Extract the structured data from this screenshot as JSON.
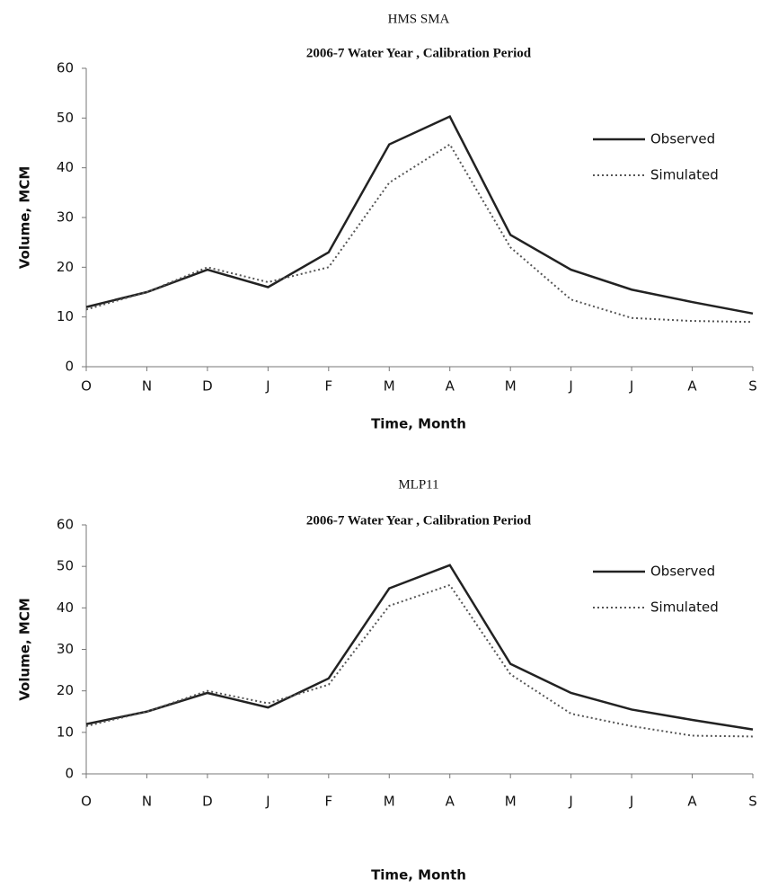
{
  "chart_data": [
    {
      "type": "line",
      "title": "HMS SMA",
      "subtitle": "2006-7 Water Year , Calibration Period",
      "x_label": "Time, Month",
      "y_label": "Volume, MCM",
      "categories": [
        "O",
        "N",
        "D",
        "J",
        "F",
        "M",
        "A",
        "M",
        "J",
        "J",
        "A",
        "S"
      ],
      "ylim": [
        0,
        60
      ],
      "yticks": [
        0,
        10,
        20,
        30,
        40,
        50,
        60
      ],
      "grid": false,
      "legend": "right",
      "series": [
        {
          "name": "Observed",
          "color": "#222222",
          "style": "solid",
          "values": [
            12,
            15,
            19.5,
            16,
            23,
            44.7,
            50.3,
            26.5,
            19.5,
            15.5,
            13,
            10.7
          ]
        },
        {
          "name": "Simulated",
          "color": "#555555",
          "style": "dotted",
          "values": [
            11.5,
            15,
            20,
            17,
            20,
            37,
            44.7,
            24,
            13.5,
            9.8,
            9.2,
            9
          ]
        }
      ]
    },
    {
      "type": "line",
      "title": "MLP11",
      "subtitle": "2006-7 Water Year , Calibration Period",
      "x_label": "Time, Month",
      "y_label": "Volume, MCM",
      "categories": [
        "O",
        "N",
        "D",
        "J",
        "F",
        "M",
        "A",
        "M",
        "J",
        "J",
        "A",
        "S"
      ],
      "ylim": [
        0,
        60
      ],
      "yticks": [
        0,
        10,
        20,
        30,
        40,
        50,
        60
      ],
      "grid": false,
      "legend": "right",
      "series": [
        {
          "name": "Observed",
          "color": "#222222",
          "style": "solid",
          "values": [
            12,
            15,
            19.5,
            16,
            23,
            44.7,
            50.3,
            26.5,
            19.5,
            15.5,
            13,
            10.7
          ]
        },
        {
          "name": "Simulated",
          "color": "#555555",
          "style": "dotted",
          "values": [
            11.5,
            15,
            20,
            17,
            21.5,
            40.5,
            45.5,
            24,
            14.5,
            11.5,
            9.2,
            9
          ]
        }
      ]
    }
  ]
}
